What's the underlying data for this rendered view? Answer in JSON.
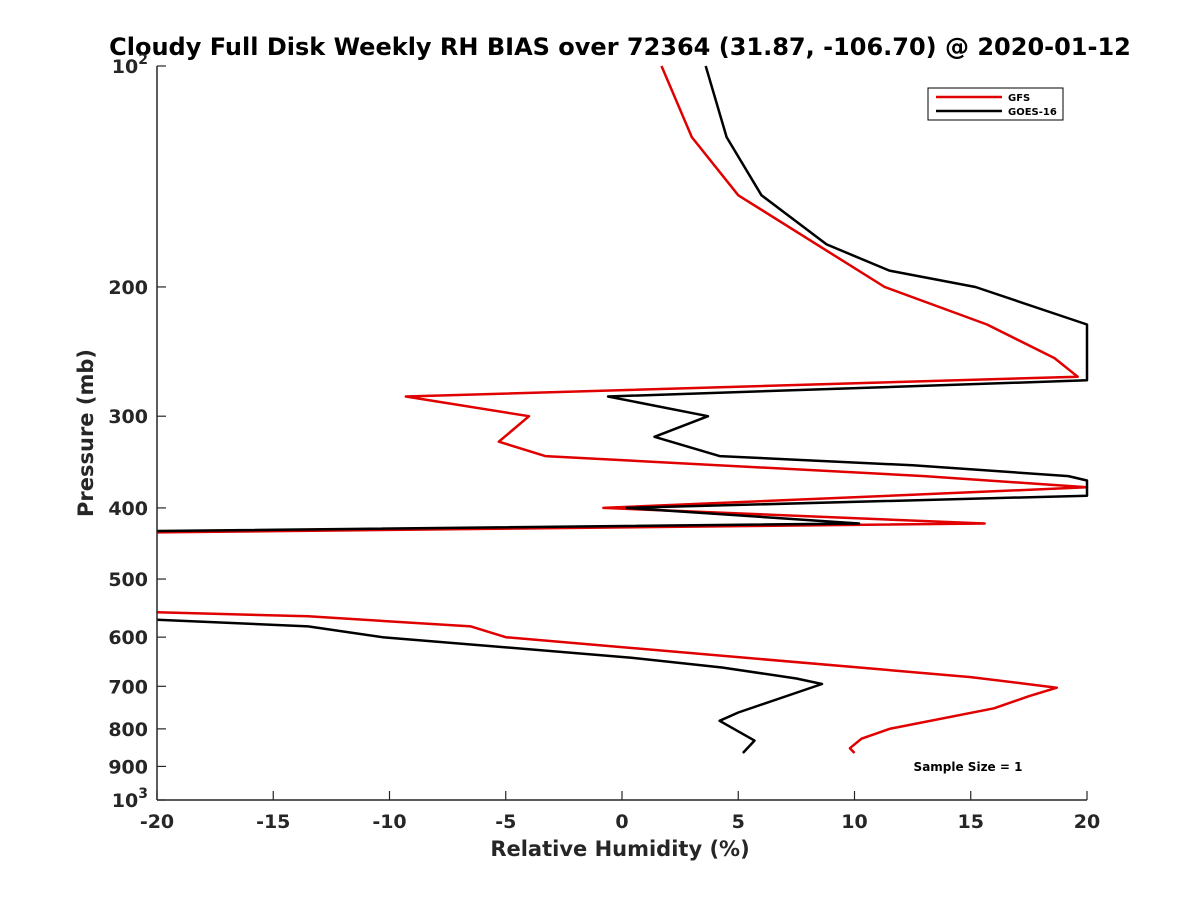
{
  "chart_data": {
    "type": "line",
    "title": "Cloudy Full Disk Weekly RH BIAS over 72364 (31.87, -106.70) @ 2020-01-12",
    "xlabel": "Relative Humidity (%)",
    "ylabel": "Pressure (mb)",
    "xlim": [
      -20,
      20
    ],
    "ylim": [
      100,
      1000
    ],
    "yscale": "log",
    "yreversed": true,
    "x_ticks": [
      {
        "value": -20,
        "label": "-20"
      },
      {
        "value": -15,
        "label": "-15"
      },
      {
        "value": -10,
        "label": "-10"
      },
      {
        "value": -5,
        "label": "-5"
      },
      {
        "value": 0,
        "label": "0"
      },
      {
        "value": 5,
        "label": "5"
      },
      {
        "value": 10,
        "label": "10"
      },
      {
        "value": 15,
        "label": "15"
      },
      {
        "value": 20,
        "label": "20"
      }
    ],
    "y_ticks": [
      {
        "value": 100,
        "base": "10",
        "exp": "2"
      },
      {
        "value": 200,
        "label": "200"
      },
      {
        "value": 300,
        "label": "300"
      },
      {
        "value": 400,
        "label": "400"
      },
      {
        "value": 500,
        "label": "500"
      },
      {
        "value": 600,
        "label": "600"
      },
      {
        "value": 700,
        "label": "700"
      },
      {
        "value": 800,
        "label": "800"
      },
      {
        "value": 900,
        "label": "900"
      },
      {
        "value": 1000,
        "base": "10",
        "exp": "3"
      }
    ],
    "grid": false,
    "legend_position": "top-right",
    "series": [
      {
        "name": "GFS",
        "color": "#e00000",
        "points": [
          [
            1.7,
            100
          ],
          [
            3.0,
            125
          ],
          [
            5.0,
            150
          ],
          [
            11.3,
            200
          ],
          [
            15.7,
            225
          ],
          [
            18.6,
            250
          ],
          [
            19.6,
            265
          ],
          [
            -9.3,
            282
          ],
          [
            -4.0,
            300
          ],
          [
            -5.3,
            325
          ],
          [
            -3.3,
            340
          ],
          [
            13.0,
            362
          ],
          [
            20.0,
            375
          ],
          [
            -0.8,
            400
          ],
          [
            15.6,
            420
          ],
          [
            -20.0,
            432
          ],
          [
            null,
            null
          ],
          [
            -20.0,
            555
          ],
          [
            -13.5,
            562
          ],
          [
            -6.5,
            580
          ],
          [
            -5.0,
            600
          ],
          [
            15.0,
            680
          ],
          [
            18.7,
            703
          ],
          [
            17.5,
            722
          ],
          [
            16.0,
            750
          ],
          [
            11.5,
            800
          ],
          [
            10.3,
            825
          ],
          [
            9.8,
            850
          ],
          [
            10.0,
            863
          ]
        ]
      },
      {
        "name": "GOES-16",
        "color": "#000000",
        "points": [
          [
            3.6,
            100
          ],
          [
            4.5,
            125
          ],
          [
            6.0,
            150
          ],
          [
            8.8,
            175
          ],
          [
            11.5,
            190
          ],
          [
            15.2,
            200
          ],
          [
            20.0,
            225
          ],
          [
            20.0,
            268
          ],
          [
            -0.6,
            282
          ],
          [
            3.7,
            300
          ],
          [
            1.4,
            320
          ],
          [
            4.2,
            340
          ],
          [
            12.5,
            350
          ],
          [
            19.2,
            362
          ],
          [
            20.0,
            367
          ],
          [
            20.0,
            385
          ],
          [
            0.2,
            400
          ],
          [
            10.2,
            420
          ],
          [
            -20.0,
            430
          ],
          [
            null,
            null
          ],
          [
            -20.0,
            568
          ],
          [
            -13.5,
            580
          ],
          [
            -10.3,
            600
          ],
          [
            0.4,
            640
          ],
          [
            4.3,
            660
          ],
          [
            7.5,
            683
          ],
          [
            8.6,
            695
          ],
          [
            5.0,
            760
          ],
          [
            4.2,
            780
          ],
          [
            5.7,
            830
          ],
          [
            5.2,
            863
          ]
        ]
      }
    ],
    "annotation": "Sample Size = 1"
  }
}
